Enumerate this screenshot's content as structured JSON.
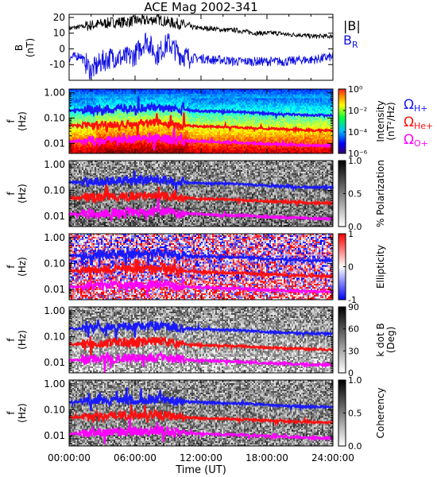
{
  "title": "ACE Mag 2002-341",
  "x_axis": {
    "label": "Time (UT)",
    "ticks": [
      "00:00:00",
      "06:00:00",
      "12:00:00",
      "18:00:00",
      "24:00:00"
    ]
  },
  "colors": {
    "b_total": "#000000",
    "b_r": "#1010e0",
    "omega_h": "#1a1aff",
    "omega_he": "#ff1010",
    "omega_o": "#ff00ff"
  },
  "panels": {
    "b": {
      "ylabel_top": "B",
      "ylabel_bottom": "(nT)",
      "yticks": [
        "20",
        "10",
        "0",
        "-10"
      ],
      "legend": {
        "total": "|B|",
        "radial": "B",
        "radial_sub": "R"
      }
    },
    "freq_ticks": [
      "1.00",
      "0.10",
      "0.01"
    ],
    "freq_ylabel_top": "f",
    "freq_ylabel_bottom": "(Hz)",
    "intensity": {
      "cbar_label_1": "Intensity",
      "cbar_label_2": "(nT²/Hz)",
      "cbar_ticks": [
        "10⁰",
        "10⁻²",
        "10⁻⁴",
        "10⁻⁶"
      ],
      "legend": [
        {
          "symbol": "Ω",
          "sub": "H+",
          "color": "#1a1aff"
        },
        {
          "symbol": "Ω",
          "sub": "He+",
          "color": "#ff1010"
        },
        {
          "symbol": "Ω",
          "sub": "O+",
          "color": "#ff00ff"
        }
      ]
    },
    "polarization": {
      "cbar_label": "% Polarization",
      "cbar_ticks": [
        "1.0",
        "0.5",
        "0.0"
      ]
    },
    "ellipticity": {
      "cbar_label": "Ellipticity",
      "cbar_ticks": [
        "1",
        "0",
        "-1"
      ]
    },
    "kdotb": {
      "cbar_label_1": "k dot B",
      "cbar_label_2": "(Deg)",
      "cbar_ticks": [
        "90",
        "60",
        "30",
        "0"
      ]
    },
    "coherency": {
      "cbar_label": "Coherency",
      "cbar_ticks": [
        "1.0",
        "0.5",
        "0.0"
      ]
    }
  },
  "chart_data": [
    {
      "type": "line",
      "title": "ACE Mag 2002-341",
      "xlabel": "Time (UT)",
      "ylabel": "B (nT)",
      "xlim": [
        0,
        24
      ],
      "ylim": [
        -20,
        22
      ],
      "x": [
        0,
        1,
        2,
        3,
        4,
        5,
        6,
        7,
        8,
        9,
        10,
        11,
        12,
        13,
        14,
        15,
        16,
        17,
        18,
        19,
        20,
        21,
        22,
        23,
        24
      ],
      "series": [
        {
          "name": "|B|",
          "values": [
            13,
            14,
            15,
            16,
            17,
            17,
            18,
            18,
            19,
            17,
            16,
            14,
            13,
            13,
            12,
            12,
            11,
            10,
            10,
            10,
            9,
            9,
            8,
            8,
            8
          ]
        },
        {
          "name": "B_R",
          "values": [
            -6,
            -4,
            -14,
            -8,
            -5,
            -6,
            -4,
            6,
            -4,
            4,
            -3,
            -6,
            -6,
            -7,
            -7,
            -8,
            -8,
            -8,
            -8,
            -8,
            -8,
            -7,
            -7,
            -6,
            -5
          ]
        }
      ]
    },
    {
      "type": "line",
      "ylabel": "f (Hz)",
      "yscale": "log",
      "ylim": [
        0.004,
        1.4
      ],
      "xlim": [
        0,
        24
      ],
      "x": [
        0,
        2,
        4,
        6,
        8,
        10,
        12,
        14,
        16,
        18,
        20,
        22,
        24
      ],
      "series": [
        {
          "name": "ΩH+",
          "values": [
            0.2,
            0.21,
            0.23,
            0.24,
            0.26,
            0.21,
            0.19,
            0.18,
            0.17,
            0.15,
            0.14,
            0.13,
            0.13
          ]
        },
        {
          "name": "ΩHe+",
          "values": [
            0.05,
            0.052,
            0.057,
            0.06,
            0.065,
            0.052,
            0.047,
            0.045,
            0.042,
            0.038,
            0.035,
            0.033,
            0.032
          ]
        },
        {
          "name": "ΩO+",
          "values": [
            0.012,
            0.013,
            0.014,
            0.015,
            0.016,
            0.013,
            0.012,
            0.011,
            0.0105,
            0.0095,
            0.0088,
            0.0083,
            0.008
          ]
        }
      ]
    }
  ]
}
